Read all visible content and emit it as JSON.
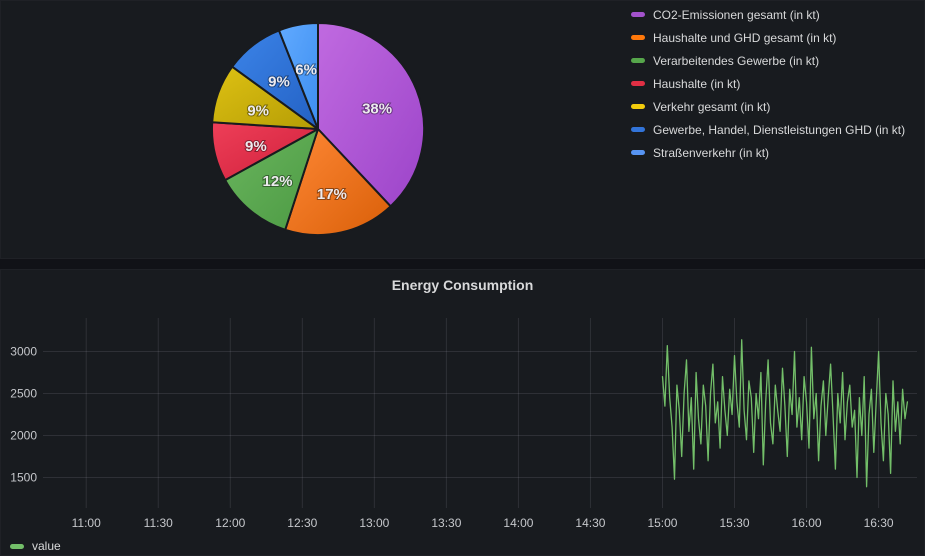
{
  "pie_panel": {
    "legend_items": [
      {
        "label": "CO2-Emissionen gesamt (in kt)",
        "color": "#a352cc"
      },
      {
        "label": "Haushalte und GHD gesamt (in kt)",
        "color": "#ff780a"
      },
      {
        "label": "Verarbeitendes Gewerbe (in kt)",
        "color": "#56a64b"
      },
      {
        "label": "Haushalte (in kt)",
        "color": "#e02f44"
      },
      {
        "label": "Verkehr gesamt (in kt)",
        "color": "#f2cc0c"
      },
      {
        "label": "Gewerbe, Handel, Dienstleistungen GHD (in kt)",
        "color": "#3274d9"
      },
      {
        "label": "Straßenverkehr (in kt)",
        "color": "#5794f2"
      }
    ]
  },
  "ts_panel": {
    "title": "Energy Consumption",
    "legend_label": "value",
    "series_color": "#73bf69"
  },
  "chart_data": [
    {
      "type": "pie",
      "title": "",
      "categories": [
        "CO2-Emissionen gesamt (in kt)",
        "Haushalte und GHD gesamt (in kt)",
        "Verarbeitendes Gewerbe (in kt)",
        "Haushalte (in kt)",
        "Verkehr gesamt (in kt)",
        "Gewerbe, Handel, Dienstleistungen GHD (in kt)",
        "Straßenverkehr (in kt)"
      ],
      "values": [
        38,
        17,
        12,
        9,
        9,
        9,
        6
      ],
      "unit": "percent",
      "slice_labels": [
        "38%",
        "17%",
        "12%",
        "9%",
        "9%",
        "9%",
        "6%"
      ],
      "slice_gradients": [
        [
          "#c06ae0",
          "#9c44c9"
        ],
        [
          "#ff8836",
          "#d95f08"
        ],
        [
          "#6ab55e",
          "#4c9a43"
        ],
        [
          "#ee3f58",
          "#cf1f3b"
        ],
        [
          "#dec113",
          "#b59d05"
        ],
        [
          "#3c84e8",
          "#2361c4"
        ],
        [
          "#61aaff",
          "#3d8ef0"
        ]
      ],
      "start_angle_deg": 0,
      "direction": "clockwise",
      "legend_position": "right"
    },
    {
      "type": "line",
      "title": "Energy Consumption",
      "xlabel": "",
      "ylabel": "",
      "grid": true,
      "legend_position": "bottom-left",
      "x_ticks": [
        "11:00",
        "11:30",
        "12:00",
        "12:30",
        "13:00",
        "13:30",
        "14:00",
        "14:30",
        "15:00",
        "15:30",
        "16:00",
        "16:30"
      ],
      "x_tick_minutes": [
        660,
        690,
        720,
        750,
        780,
        810,
        840,
        870,
        900,
        930,
        960,
        990
      ],
      "x_domain_minutes": [
        642,
        1006
      ],
      "y_ticks": [
        1500,
        2000,
        2500,
        3000
      ],
      "y_domain": [
        1137,
        3399
      ],
      "series": [
        {
          "name": "value",
          "color": "#73bf69",
          "start_minute": 900,
          "interval_minutes": 1,
          "values": [
            2700,
            2350,
            3070,
            2450,
            2100,
            1480,
            2600,
            2300,
            1750,
            2500,
            2900,
            2050,
            2450,
            1600,
            2750,
            2200,
            1900,
            2600,
            2350,
            1700,
            2500,
            2850,
            2150,
            2400,
            1850,
            2700,
            2300,
            2000,
            2550,
            2250,
            2950,
            2400,
            2100,
            3140,
            2300,
            1950,
            2650,
            2450,
            1800,
            2500,
            2200,
            2750,
            1650,
            2400,
            2900,
            2150,
            1900,
            2600,
            2300,
            2050,
            2800,
            2350,
            1750,
            2550,
            2250,
            3000,
            2100,
            2450,
            1950,
            2700,
            2400,
            1850,
            3050,
            2200,
            2500,
            1700,
            2350,
            2650,
            2000,
            2450,
            2850,
            2250,
            1600,
            2500,
            2150,
            2750,
            1950,
            2400,
            2600,
            2100,
            2300,
            1500,
            2450,
            2000,
            2700,
            1390,
            2250,
            2550,
            1800,
            2400,
            3000,
            2150,
            1700,
            2500,
            2250,
            1550,
            2650,
            2050,
            2400,
            1900,
            2550,
            2200,
            2400
          ]
        }
      ]
    }
  ]
}
